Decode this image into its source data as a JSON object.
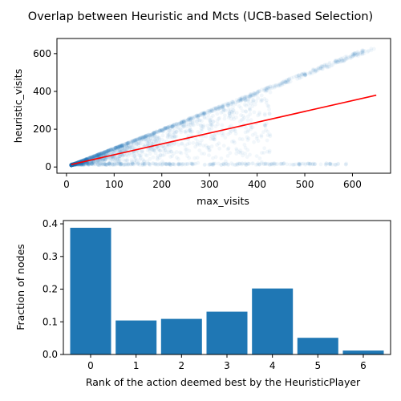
{
  "title": "Overlap between Heuristic and Mcts (UCB-based Selection)",
  "chart_data": [
    {
      "type": "scatter",
      "xlabel": "max_visits",
      "ylabel": "heuristic_visits",
      "xlim": [
        -20,
        680
      ],
      "ylim": [
        -33,
        680
      ],
      "xticks": [
        0,
        100,
        200,
        300,
        400,
        500,
        600
      ],
      "yticks": [
        0,
        200,
        400,
        600
      ],
      "point_color": "#1f77b4",
      "point_alpha": 0.06,
      "trendline": {
        "color": "#ff0000",
        "x": [
          10,
          650
        ],
        "y": [
          13,
          380
        ]
      },
      "envelope": {
        "upper_diagonal": {
          "from": [
            10,
            10
          ],
          "to": [
            650,
            650
          ]
        },
        "lower_diagonal": {
          "from": [
            10,
            10
          ],
          "to": [
            600,
            12
          ]
        }
      },
      "grid": false
    },
    {
      "type": "bar",
      "xlabel": "Rank of the action deemed best by the HeuristicPlayer",
      "ylabel": "Fraction of nodes",
      "categories": [
        "0",
        "1",
        "2",
        "3",
        "4",
        "5",
        "6"
      ],
      "values": [
        0.388,
        0.104,
        0.109,
        0.131,
        0.202,
        0.051,
        0.012
      ],
      "ylim": [
        0,
        0.41
      ],
      "yticks": [
        "0.0",
        "0.1",
        "0.2",
        "0.3",
        "0.4"
      ],
      "bar_color": "#1f77b4",
      "grid": false
    }
  ]
}
